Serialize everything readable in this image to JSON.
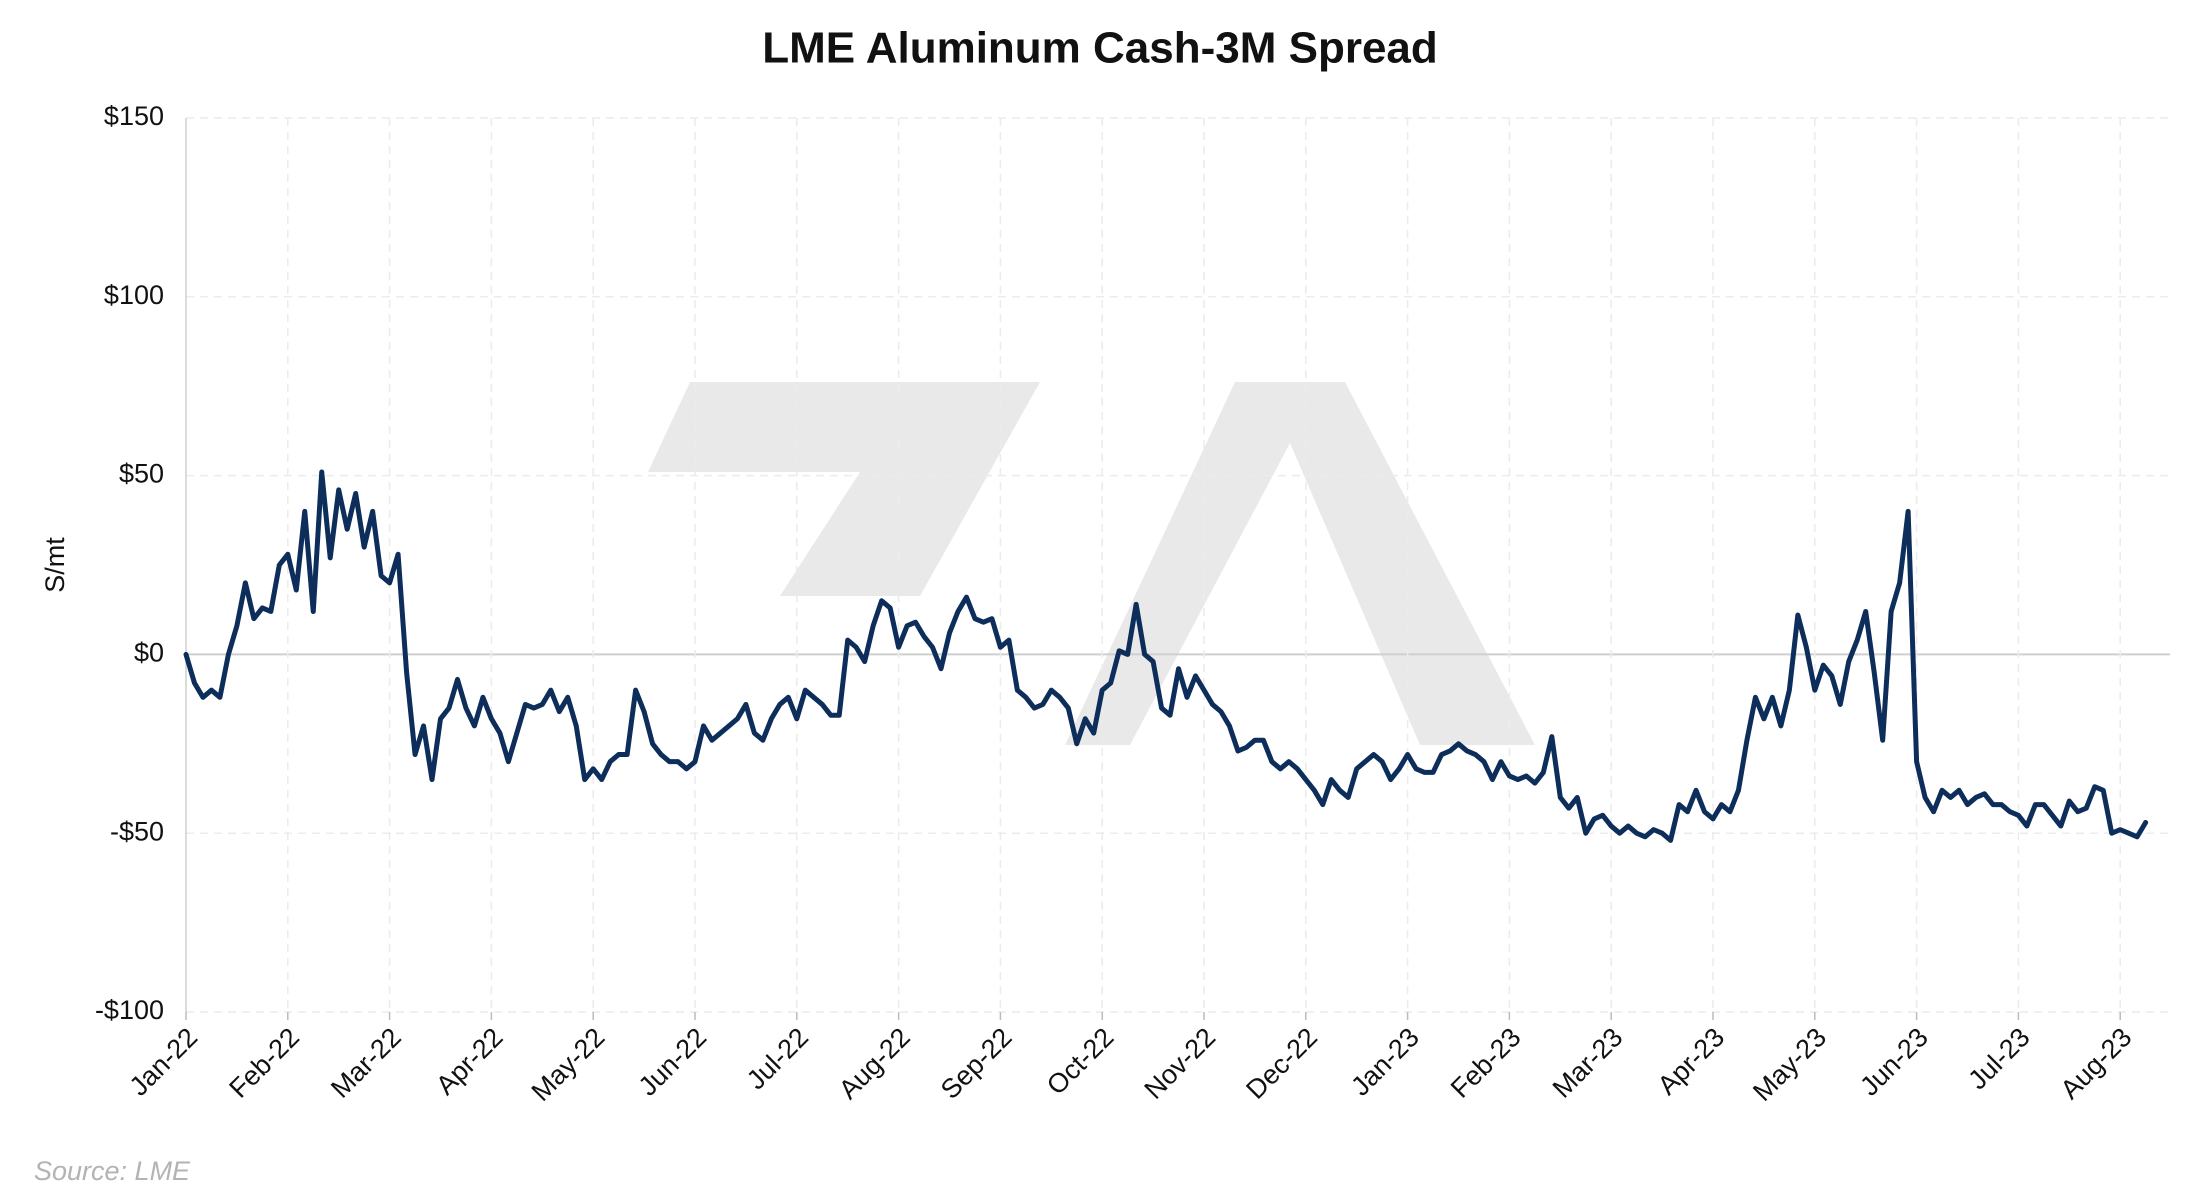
{
  "chart_data": {
    "type": "line",
    "title": "LME Aluminum Cash-3M Spread",
    "ylabel": "S/mt",
    "source": "Source: LME",
    "color": "#0d2d5a",
    "categories": [
      "Jan-22",
      null,
      null,
      null,
      null,
      null,
      null,
      null,
      null,
      null,
      null,
      null,
      "Feb-22",
      null,
      null,
      null,
      null,
      null,
      null,
      null,
      null,
      null,
      null,
      null,
      "Mar-22",
      null,
      null,
      null,
      null,
      null,
      null,
      null,
      null,
      null,
      null,
      null,
      "Apr-22",
      null,
      null,
      null,
      null,
      null,
      null,
      null,
      null,
      null,
      null,
      null,
      "May-22",
      null,
      null,
      null,
      null,
      null,
      null,
      null,
      null,
      null,
      null,
      null,
      "Jun-22",
      null,
      null,
      null,
      null,
      null,
      null,
      null,
      null,
      null,
      null,
      null,
      "Jul-22",
      null,
      null,
      null,
      null,
      null,
      null,
      null,
      null,
      null,
      null,
      null,
      "Aug-22",
      null,
      null,
      null,
      null,
      null,
      null,
      null,
      null,
      null,
      null,
      null,
      "Sep-22",
      null,
      null,
      null,
      null,
      null,
      null,
      null,
      null,
      null,
      null,
      null,
      "Oct-22",
      null,
      null,
      null,
      null,
      null,
      null,
      null,
      null,
      null,
      null,
      null,
      "Nov-22",
      null,
      null,
      null,
      null,
      null,
      null,
      null,
      null,
      null,
      null,
      null,
      "Dec-22",
      null,
      null,
      null,
      null,
      null,
      null,
      null,
      null,
      null,
      null,
      null,
      "Jan-23",
      null,
      null,
      null,
      null,
      null,
      null,
      null,
      null,
      null,
      null,
      null,
      "Feb-23",
      null,
      null,
      null,
      null,
      null,
      null,
      null,
      null,
      null,
      null,
      null,
      "Mar-23",
      null,
      null,
      null,
      null,
      null,
      null,
      null,
      null,
      null,
      null,
      null,
      "Apr-23",
      null,
      null,
      null,
      null,
      null,
      null,
      null,
      null,
      null,
      null,
      null,
      "May-23",
      null,
      null,
      null,
      null,
      null,
      null,
      null,
      null,
      null,
      null,
      null,
      "Jun-23",
      null,
      null,
      null,
      null,
      null,
      null,
      null,
      null,
      null,
      null,
      null,
      "Jul-23",
      null,
      null,
      null,
      null,
      null,
      null,
      null,
      null,
      null,
      null,
      null,
      "Aug-23",
      null,
      null,
      null
    ],
    "values": [
      0,
      -8,
      -12,
      -10,
      -12,
      0,
      8,
      20,
      10,
      13,
      12,
      25,
      28,
      18,
      40,
      12,
      51,
      27,
      46,
      35,
      45,
      30,
      40,
      22,
      20,
      28,
      -5,
      -28,
      -20,
      -35,
      -18,
      -15,
      -7,
      -15,
      -20,
      -12,
      -18,
      -22,
      -30,
      -22,
      -14,
      -15,
      -14,
      -10,
      -16,
      -12,
      -20,
      -35,
      -32,
      -35,
      -30,
      -28,
      -28,
      -10,
      -16,
      -25,
      -28,
      -30,
      -30,
      -32,
      -30,
      -20,
      -24,
      -22,
      -20,
      -18,
      -14,
      -22,
      -24,
      -18,
      -14,
      -12,
      -18,
      -10,
      -12,
      -14,
      -17,
      -17,
      4,
      2,
      -2,
      8,
      15,
      13,
      2,
      8,
      9,
      5,
      2,
      -4,
      6,
      12,
      16,
      10,
      9,
      10,
      2,
      4,
      -10,
      -12,
      -15,
      -14,
      -10,
      -12,
      -15,
      -25,
      -18,
      -22,
      -10,
      -8,
      1,
      0,
      14,
      0,
      -2,
      -15,
      -17,
      -4,
      -12,
      -6,
      -10,
      -14,
      -16,
      -20,
      -27,
      -26,
      -24,
      -24,
      -30,
      -32,
      -30,
      -32,
      -35,
      -38,
      -42,
      -35,
      -38,
      -40,
      -32,
      -30,
      -28,
      -30,
      -35,
      -32,
      -28,
      -32,
      -33,
      -33,
      -28,
      -27,
      -25,
      -27,
      -28,
      -30,
      -35,
      -30,
      -34,
      -35,
      -34,
      -36,
      -33,
      -23,
      -40,
      -43,
      -40,
      -50,
      -46,
      -45,
      -48,
      -50,
      -48,
      -50,
      -51,
      -49,
      -50,
      -52,
      -42,
      -44,
      -38,
      -44,
      -46,
      -42,
      -44,
      -38,
      -24,
      -12,
      -18,
      -12,
      -20,
      -10,
      11,
      2,
      -10,
      -3,
      -6,
      -14,
      -2,
      4,
      12,
      -5,
      -24,
      12,
      20,
      40,
      -30,
      -40,
      -44,
      -38,
      -40,
      -38,
      -42,
      -40,
      -39,
      -42,
      -42,
      -44,
      -45,
      -48,
      -42,
      -42,
      -45,
      -48,
      -41,
      -44,
      -43,
      -37,
      -38,
      -50,
      -49,
      -50,
      -51,
      -47
    ],
    "ylim": [
      -100,
      150
    ],
    "yticks": [
      {
        "value": -100,
        "label": "-$100"
      },
      {
        "value": -50,
        "label": "-$50"
      },
      {
        "value": 0,
        "label": "$0"
      },
      {
        "value": 50,
        "label": "$50"
      },
      {
        "value": 100,
        "label": "$100"
      },
      {
        "value": 150,
        "label": "$150"
      }
    ],
    "grid": true
  }
}
